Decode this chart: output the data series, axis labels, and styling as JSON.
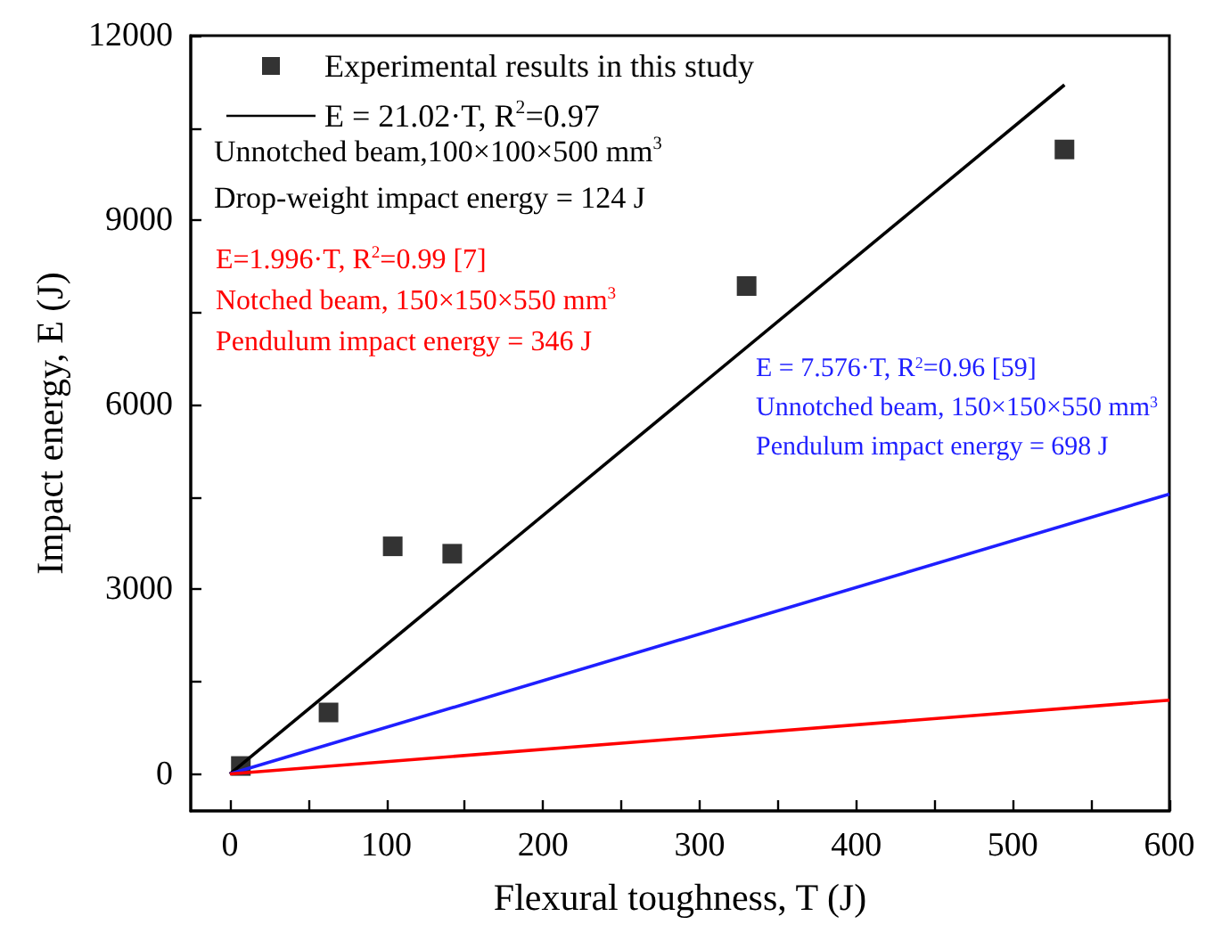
{
  "chart_data": {
    "type": "scatter",
    "xlabel": "Flexural toughness, T (J)",
    "ylabel": "Impact energy, E (J)",
    "xlim": [
      -25,
      600
    ],
    "ylim": [
      -600,
      12000
    ],
    "xticks": [
      0,
      {
        "value": 50,
        "label": null
      },
      100,
      {
        "value": 150,
        "label": null
      },
      200,
      {
        "value": 250,
        "label": null
      },
      300,
      {
        "value": 350,
        "label": null
      },
      400,
      {
        "value": 450,
        "label": null
      },
      500,
      {
        "value": 550,
        "label": null
      },
      600
    ],
    "yticks": [
      0,
      {
        "value": 1500,
        "label": null
      },
      3000,
      {
        "value": 4500,
        "label": null
      },
      6000,
      {
        "value": 7500,
        "label": null
      },
      9000,
      {
        "value": 10500,
        "label": null
      },
      12000
    ],
    "legend": "top left",
    "grid": false,
    "series": [
      {
        "name": "Experimental results in this study",
        "marker": "square",
        "color": "#000000",
        "x": [
          7,
          63,
          104,
          142,
          330,
          533
        ],
        "values": [
          130,
          1000,
          3700,
          3580,
          7930,
          10150
        ]
      },
      {
        "name": "E = 21.02·T, R$^{2}$=0.97",
        "type": "line",
        "marker": "none",
        "color": "#000000",
        "x": [
          0,
          533
        ],
        "values": [
          0,
          11200
        ]
      },
      {
        "name": "E = 7.576·T, R$^{2}$=0.96 [59]\nUnnotched beam, 150×150×550 mm$^{3}$\nPendulum impact energy = 698 J",
        "type": "line",
        "marker": "none",
        "color": "#1f1fff",
        "x": [
          0,
          600
        ],
        "values": [
          0,
          4550
        ]
      },
      {
        "name": "E=1.996·T, R$^{2}$=0.99 [7]\nNotched beam, 150×150×550 mm$^{3}$\nPendulum impact energy = 346 J",
        "type": "line",
        "marker": "none",
        "color": "#ff0000",
        "x": [
          0,
          600
        ],
        "values": [
          0,
          1200
        ]
      }
    ],
    "annotations": [
      "Unnotched beam,100×100×500 mm$^{3}$",
      "Drop-weight impact energy = 124 J"
    ]
  }
}
